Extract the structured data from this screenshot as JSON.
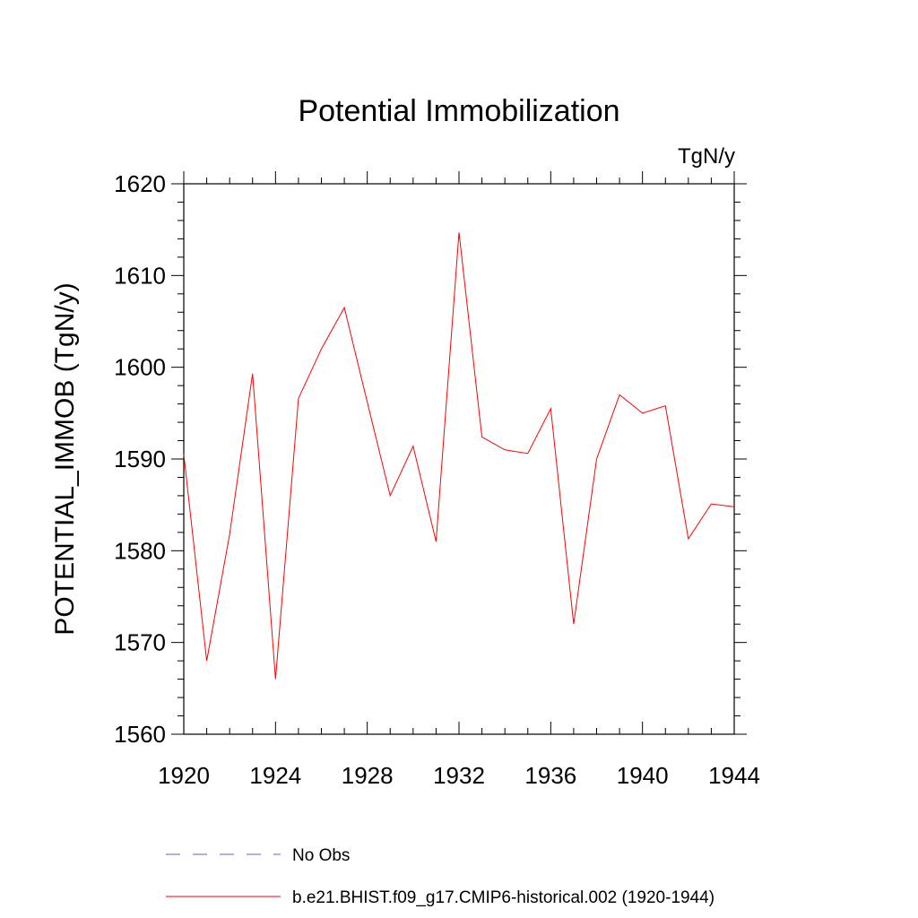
{
  "chart_data": {
    "type": "line",
    "title": "Potential Immobilization",
    "units_label": "TgN/y",
    "xlabel": "",
    "ylabel": "POTENTIAL_IMMOB  (TgN/y)",
    "xlim": [
      1920,
      1944
    ],
    "ylim": [
      1560,
      1620
    ],
    "x_ticks": [
      1920,
      1924,
      1928,
      1932,
      1936,
      1940,
      1944
    ],
    "y_ticks": [
      1560,
      1570,
      1580,
      1590,
      1600,
      1610,
      1620
    ],
    "grid": false,
    "legend_position": "bottom",
    "x": [
      1920,
      1921,
      1922,
      1923,
      1924,
      1925,
      1926,
      1927,
      1928,
      1929,
      1930,
      1931,
      1932,
      1933,
      1934,
      1935,
      1936,
      1937,
      1938,
      1939,
      1940,
      1941,
      1942,
      1943,
      1944
    ],
    "series": [
      {
        "name": "b.e21.BHIST.f09_g17.CMIP6-historical.002 (1920-1944)",
        "color": "#ff0000",
        "style": "solid",
        "values": [
          1590.5,
          1568.0,
          1581.8,
          1599.3,
          1566.0,
          1596.6,
          1602.0,
          1606.5,
          1596.2,
          1586.0,
          1591.4,
          1581.0,
          1614.7,
          1592.4,
          1591.0,
          1590.6,
          1595.5,
          1572.0,
          1590.0,
          1597.0,
          1595.0,
          1595.8,
          1581.3,
          1585.1,
          1584.8
        ]
      }
    ],
    "legend": [
      {
        "label": "No Obs",
        "color": "#6a5acd",
        "style": "dashed"
      },
      {
        "label": "b.e21.BHIST.f09_g17.CMIP6-historical.002 (1920-1944)",
        "color": "#ff0000",
        "style": "solid"
      }
    ]
  }
}
